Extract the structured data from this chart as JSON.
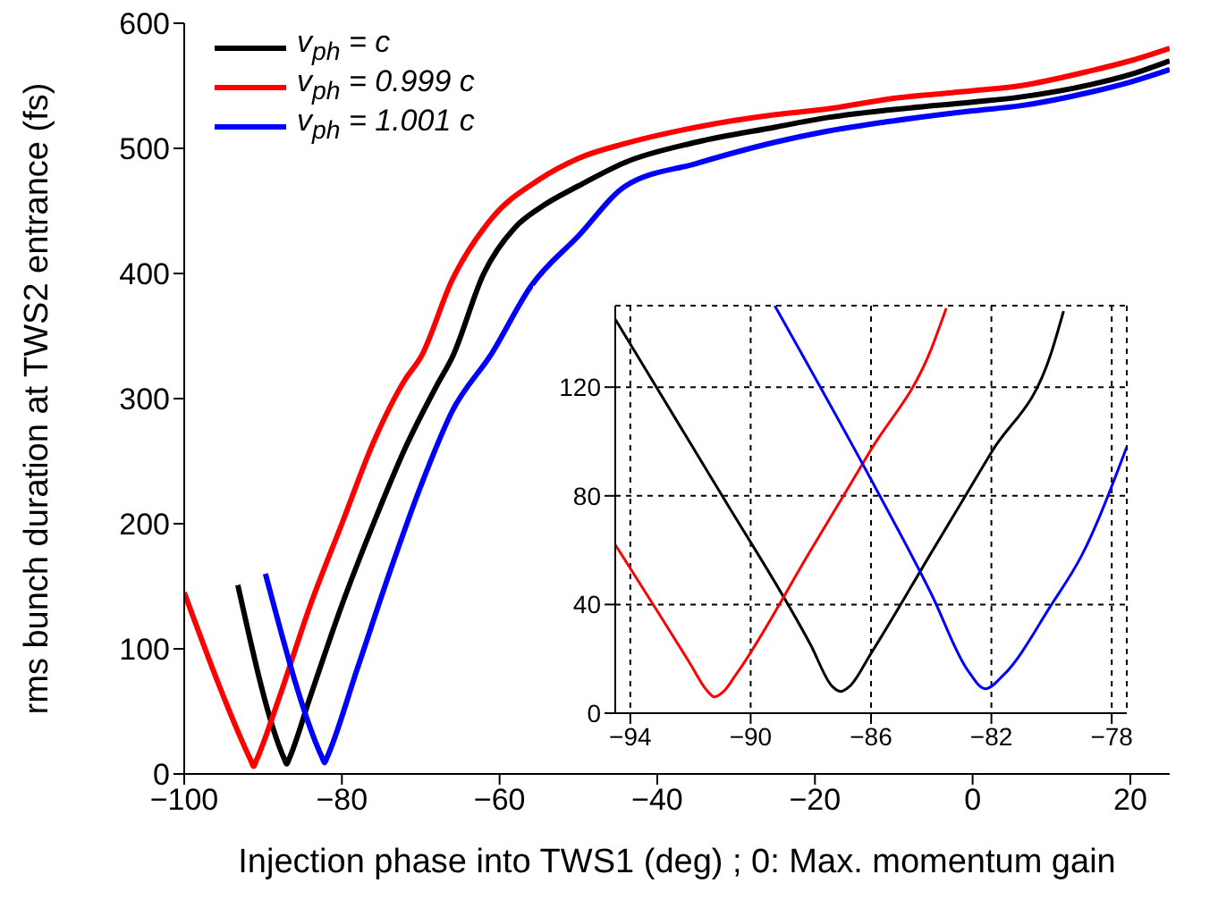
{
  "chart_data": [
    {
      "type": "line",
      "xlabel": "Injection phase into TWS1 (deg) ; 0: Max. momentum gain",
      "ylabel": "rms bunch duration at TWS2 entrance (fs)",
      "xlim": [
        -100,
        25
      ],
      "xticks": [
        -100,
        -80,
        -60,
        -40,
        -20,
        0,
        20
      ],
      "ylim": [
        0,
        600
      ],
      "yticks": [
        0,
        100,
        200,
        300,
        400,
        500,
        600
      ],
      "grid": false,
      "legend": "top left",
      "marker": "none",
      "line_style": "solid",
      "series": [
        {
          "name": "v$_{ph}$ = c",
          "color": "#000000",
          "x": [
            -93.2,
            -87.3,
            -87,
            -86.7,
            -84,
            -80,
            -76,
            -72,
            -68,
            -66,
            -62,
            -58,
            -55,
            -50,
            -44,
            -35,
            -25,
            -19,
            -10,
            0,
            6,
            15,
            20,
            25
          ],
          "values": [
            151,
            12,
            8,
            12,
            62,
            135,
            200,
            260,
            310,
            333,
            400,
            437,
            452,
            470,
            489,
            505,
            517,
            524,
            531,
            537,
            541,
            551,
            559,
            570
          ]
        },
        {
          "name": "v$_{ph}$ = 0.999 c",
          "color": "#ff0000",
          "x": [
            -100,
            -91.5,
            -91.2,
            -90.9,
            -88,
            -84,
            -80,
            -76,
            -72,
            -70,
            -66,
            -61,
            -55,
            -50,
            -44,
            -35,
            -25,
            -19,
            -10,
            0,
            6,
            15,
            20,
            25
          ],
          "values": [
            145,
            10,
            6,
            10,
            60,
            135,
            200,
            265,
            315,
            333,
            395,
            444,
            475,
            492,
            504,
            517,
            527,
            531,
            540,
            546,
            550,
            562,
            570,
            580
          ]
        },
        {
          "name": "v$_{ph}$ = 1.001 c",
          "color": "#0000ff",
          "x": [
            -89.7,
            -82.5,
            -82.2,
            -81.9,
            -78,
            -74,
            -70,
            -66,
            -61,
            -56,
            -50,
            -44,
            -35,
            -25,
            -19,
            -10,
            0,
            6,
            15,
            20,
            25
          ],
          "values": [
            160,
            13,
            9,
            13,
            85,
            160,
            230,
            290,
            336,
            390,
            430,
            470,
            488,
            505,
            513,
            522,
            530,
            534,
            545,
            553,
            563
          ]
        }
      ]
    },
    {
      "type": "line",
      "xlim": [
        -94.5,
        -77.5
      ],
      "xticks": [
        -94,
        -90,
        -86,
        -82,
        -78
      ],
      "ylim": [
        0,
        150
      ],
      "yticks": [
        0,
        40,
        80,
        120
      ],
      "grid": true,
      "line_style": "solid",
      "marker": "none",
      "series": [
        {
          "color": "#000000",
          "x": [
            -94.5,
            -91,
            -88,
            -87.3,
            -87,
            -86.7,
            -86,
            -84,
            -82,
            -80,
            -79.6
          ],
          "values": [
            145,
            81,
            25,
            10,
            8,
            10,
            22,
            59,
            96,
            133,
            148
          ]
        },
        {
          "color": "#ff0000",
          "x": [
            -94.5,
            -92,
            -91.5,
            -91.2,
            -90.9,
            -90.5,
            -88,
            -86,
            -84,
            -83.5
          ],
          "values": [
            62,
            18,
            9,
            6,
            8,
            14,
            60,
            97,
            134,
            149
          ]
        },
        {
          "color": "#0000ff",
          "x": [
            -89.2,
            -86,
            -84,
            -82.8,
            -82.2,
            -81.6,
            -80,
            -79,
            -77.5
          ],
          "values": [
            150,
            86,
            44,
            16,
            9,
            14,
            40,
            58,
            98
          ]
        }
      ]
    }
  ]
}
